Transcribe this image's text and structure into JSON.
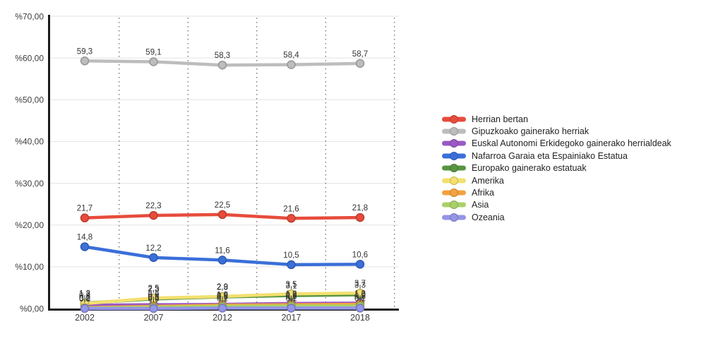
{
  "chart_data": {
    "type": "line",
    "title": "",
    "categories": [
      "2002",
      "2007",
      "2012",
      "2017",
      "2018"
    ],
    "series": [
      {
        "name": "Herrian bertan",
        "color": "#e74c3c",
        "values": [
          21.7,
          22.3,
          22.5,
          21.6,
          21.8
        ]
      },
      {
        "name": "Gipuzkoako gainerako herriak",
        "color": "#bdbdbd",
        "values": [
          59.3,
          59.1,
          58.3,
          58.4,
          58.7
        ]
      },
      {
        "name": "Euskal Autonomi Erkidegoko gainerako herrialdeak",
        "color": "#9b59c4",
        "values": [
          0.8,
          0.9,
          1.0,
          1.2,
          1.3
        ]
      },
      {
        "name": "Nafarroa Garaia eta Espainiako Estatua",
        "color": "#3b6fd9",
        "values": [
          14.8,
          12.2,
          11.6,
          10.5,
          10.6
        ]
      },
      {
        "name": "Europako gainerako estatuak",
        "color": "#579540",
        "values": [
          1.3,
          2.3,
          2.8,
          3.1,
          3.3
        ]
      },
      {
        "name": "Amerika",
        "color": "#f3e070",
        "values": [
          1.2,
          2.5,
          2.9,
          3.5,
          3.7
        ]
      },
      {
        "name": "Afrika",
        "color": "#f3a23f",
        "values": [
          0.2,
          0.5,
          0.8,
          0.9,
          1.0
        ]
      },
      {
        "name": "Asia",
        "color": "#a9d168",
        "values": [
          0.1,
          0.3,
          0.5,
          0.6,
          0.6
        ]
      },
      {
        "name": "Ozeania",
        "color": "#9495e6",
        "values": [
          0.0,
          0.0,
          0.1,
          0.1,
          0.1
        ]
      }
    ],
    "y_axis": {
      "min": 0,
      "max": 70,
      "tick_step": 10,
      "tick_labels": [
        "%0,00",
        "%10,00",
        "%20,00",
        "%30,00",
        "%40,00",
        "%50,00",
        "%60,00",
        "%70,00"
      ]
    },
    "x_axis": {
      "tick_labels": [
        "2002",
        "2007",
        "2012",
        "2017",
        "2018"
      ]
    },
    "grid": {
      "horizontal_lines": true,
      "vertical_dotted_category_boundaries": true
    },
    "legend_position": "right",
    "value_labels_shown": true,
    "decimal_separator": ",",
    "colors": {
      "background": "#ffffff",
      "gridline": "#e3e3e3",
      "boundary_dots": "#444444",
      "axis_spine": "#1a1a1a",
      "tick_text": "#3d3d3d",
      "value_label_text": "#333333"
    }
  }
}
